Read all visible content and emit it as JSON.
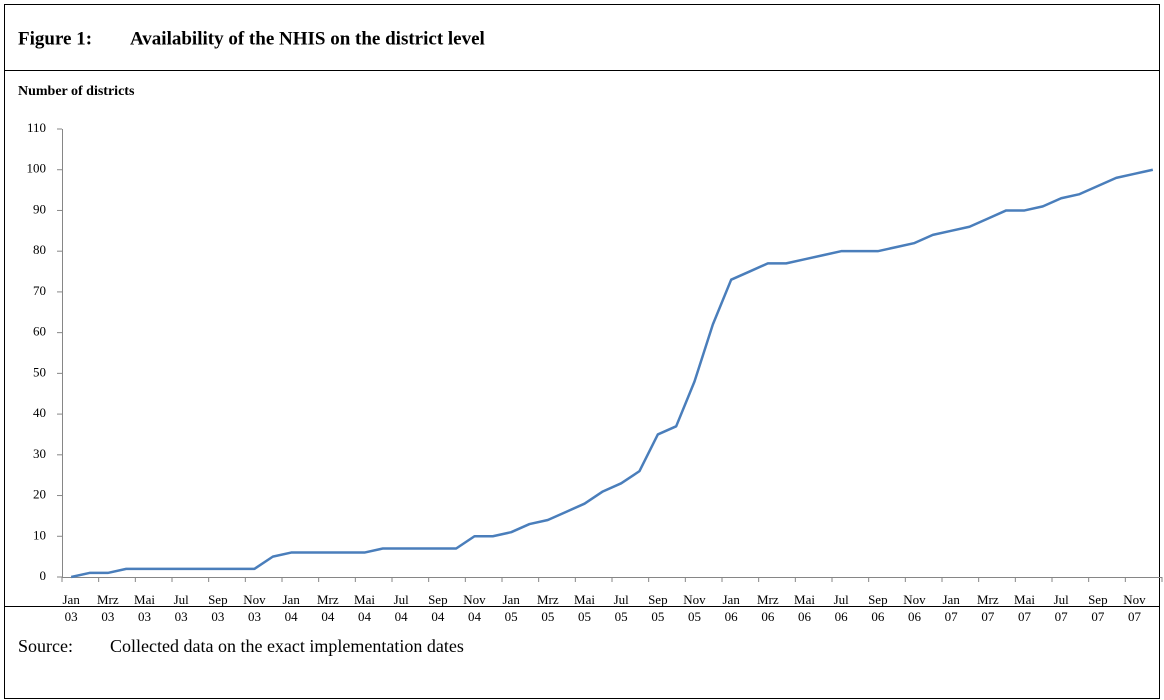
{
  "chart_data": {
    "type": "line",
    "figure_label": "Figure 1:",
    "title": "Availability of the NHIS on the district level",
    "y_label": "Number of districts",
    "source_label": "Source:",
    "source": "Collected data on the exact implementation dates",
    "categories": [
      "Jan 03",
      null,
      "Mrz 03",
      null,
      "Mai 03",
      null,
      "Jul 03",
      null,
      "Sep 03",
      null,
      "Nov 03",
      null,
      "Jan 04",
      null,
      "Mrz 04",
      null,
      "Mai 04",
      null,
      "Jul 04",
      null,
      "Sep 04",
      null,
      "Nov 04",
      null,
      "Jan 05",
      null,
      "Mrz 05",
      null,
      "Mai 05",
      null,
      "Jul 05",
      null,
      "Sep 05",
      null,
      "Nov 05",
      null,
      "Jan 06",
      null,
      "Mrz 06",
      null,
      "Mai 06",
      null,
      "Jul 06",
      null,
      "Sep 06",
      null,
      "Nov 06",
      null,
      "Jan 07",
      null,
      "Mrz 07",
      null,
      "Mai 07",
      null,
      "Jul 07",
      null,
      "Sep 07",
      null,
      "Nov 07",
      null
    ],
    "series": [
      {
        "color": "#4a7ebb",
        "values": [
          0,
          1,
          1,
          2,
          2,
          2,
          2,
          2,
          2,
          2,
          2,
          5,
          6,
          6,
          6,
          6,
          6,
          7,
          7,
          7,
          7,
          7,
          10,
          10,
          11,
          13,
          14,
          16,
          18,
          21,
          23,
          26,
          35,
          37,
          48,
          62,
          73,
          75,
          77,
          77,
          78,
          79,
          80,
          80,
          80,
          81,
          82,
          84,
          85,
          86,
          88,
          90,
          90,
          91,
          93,
          94,
          96,
          98,
          99,
          100
        ]
      }
    ],
    "ylim": [
      0,
      110
    ],
    "yticks": [
      0,
      10,
      20,
      30,
      40,
      50,
      60,
      70,
      80,
      90,
      100,
      110
    ],
    "grid": false
  }
}
